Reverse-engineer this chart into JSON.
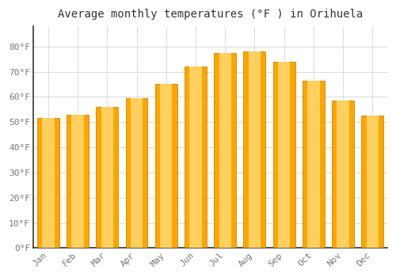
{
  "title": "Average monthly temperatures (°F ) in Orihuela",
  "months": [
    "Jan",
    "Feb",
    "Mar",
    "Apr",
    "May",
    "Jun",
    "Jul",
    "Aug",
    "Sep",
    "Oct",
    "Nov",
    "Dec"
  ],
  "values": [
    51.5,
    53.0,
    56.0,
    59.5,
    65.0,
    72.0,
    77.5,
    78.0,
    74.0,
    66.5,
    58.5,
    52.5
  ],
  "bar_color_main": "#FFA500",
  "bar_color_light": "#FFD060",
  "bar_edge_color": "#CC8800",
  "background_color": "#FFFFFF",
  "grid_color": "#DDDDDD",
  "ylim": [
    0,
    88
  ],
  "yticks": [
    0,
    10,
    20,
    30,
    40,
    50,
    60,
    70,
    80
  ],
  "ytick_labels": [
    "0°F",
    "10°F",
    "20°F",
    "30°F",
    "40°F",
    "50°F",
    "60°F",
    "70°F",
    "80°F"
  ],
  "title_fontsize": 10,
  "tick_fontsize": 8,
  "font_color": "#777777"
}
